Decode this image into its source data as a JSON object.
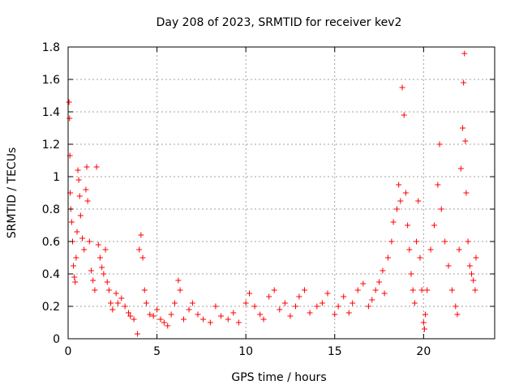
{
  "chart_data": {
    "type": "scatter",
    "title": "Day 208 of 2023, SRMTID for receiver kev2",
    "xlabel": "GPS time / hours",
    "ylabel": "SRMTID / TECUs",
    "xlim": [
      0,
      24
    ],
    "ylim": [
      0,
      1.8
    ],
    "xticks": [
      0,
      5,
      10,
      15,
      20
    ],
    "xtick_labels": [
      "0",
      "5",
      "10",
      "15",
      "20"
    ],
    "yticks": [
      0,
      0.2,
      0.4,
      0.6,
      0.8,
      1.0,
      1.2,
      1.4,
      1.6,
      1.8
    ],
    "ytick_labels": [
      "0",
      "0.2",
      "0.4",
      "0.6",
      "0.8",
      "1",
      "1.2",
      "1.4",
      "1.6",
      "1.8"
    ],
    "grid": true,
    "marker": "plus",
    "color": "#ff0000",
    "series": [
      {
        "name": "kev2",
        "points": [
          [
            0.05,
            1.46
          ],
          [
            0.08,
            1.36
          ],
          [
            0.1,
            1.13
          ],
          [
            0.12,
            0.9
          ],
          [
            0.15,
            0.8
          ],
          [
            0.2,
            0.72
          ],
          [
            0.25,
            0.6
          ],
          [
            0.3,
            0.45
          ],
          [
            0.35,
            0.38
          ],
          [
            0.4,
            0.35
          ],
          [
            0.45,
            0.5
          ],
          [
            0.5,
            0.66
          ],
          [
            0.55,
            1.04
          ],
          [
            0.6,
            0.98
          ],
          [
            0.65,
            0.88
          ],
          [
            0.7,
            0.76
          ],
          [
            0.8,
            0.62
          ],
          [
            0.9,
            0.55
          ],
          [
            1.0,
            0.92
          ],
          [
            1.05,
            1.06
          ],
          [
            1.1,
            0.85
          ],
          [
            1.2,
            0.6
          ],
          [
            1.3,
            0.42
          ],
          [
            1.4,
            0.36
          ],
          [
            1.5,
            0.3
          ],
          [
            1.6,
            1.06
          ],
          [
            1.7,
            0.58
          ],
          [
            1.8,
            0.5
          ],
          [
            1.9,
            0.44
          ],
          [
            2.0,
            0.4
          ],
          [
            2.1,
            0.55
          ],
          [
            2.2,
            0.35
          ],
          [
            2.3,
            0.3
          ],
          [
            2.4,
            0.22
          ],
          [
            2.5,
            0.18
          ],
          [
            2.7,
            0.28
          ],
          [
            2.8,
            0.22
          ],
          [
            3.0,
            0.25
          ],
          [
            3.2,
            0.2
          ],
          [
            3.4,
            0.16
          ],
          [
            3.5,
            0.14
          ],
          [
            3.7,
            0.12
          ],
          [
            3.9,
            0.03
          ],
          [
            4.0,
            0.55
          ],
          [
            4.1,
            0.64
          ],
          [
            4.2,
            0.5
          ],
          [
            4.3,
            0.3
          ],
          [
            4.4,
            0.22
          ],
          [
            4.6,
            0.15
          ],
          [
            4.8,
            0.14
          ],
          [
            5.0,
            0.18
          ],
          [
            5.2,
            0.12
          ],
          [
            5.4,
            0.1
          ],
          [
            5.6,
            0.08
          ],
          [
            5.8,
            0.15
          ],
          [
            6.0,
            0.22
          ],
          [
            6.2,
            0.36
          ],
          [
            6.3,
            0.3
          ],
          [
            6.5,
            0.12
          ],
          [
            6.8,
            0.18
          ],
          [
            7.0,
            0.22
          ],
          [
            7.3,
            0.15
          ],
          [
            7.6,
            0.12
          ],
          [
            8.0,
            0.1
          ],
          [
            8.3,
            0.2
          ],
          [
            8.6,
            0.14
          ],
          [
            9.0,
            0.12
          ],
          [
            9.3,
            0.16
          ],
          [
            9.6,
            0.1
          ],
          [
            10.0,
            0.22
          ],
          [
            10.2,
            0.28
          ],
          [
            10.5,
            0.2
          ],
          [
            10.8,
            0.15
          ],
          [
            11.0,
            0.12
          ],
          [
            11.3,
            0.26
          ],
          [
            11.6,
            0.3
          ],
          [
            11.9,
            0.18
          ],
          [
            12.2,
            0.22
          ],
          [
            12.5,
            0.14
          ],
          [
            12.8,
            0.2
          ],
          [
            13.0,
            0.26
          ],
          [
            13.3,
            0.3
          ],
          [
            13.6,
            0.16
          ],
          [
            14.0,
            0.2
          ],
          [
            14.3,
            0.22
          ],
          [
            14.6,
            0.28
          ],
          [
            15.0,
            0.15
          ],
          [
            15.2,
            0.2
          ],
          [
            15.5,
            0.26
          ],
          [
            15.8,
            0.16
          ],
          [
            16.0,
            0.22
          ],
          [
            16.3,
            0.3
          ],
          [
            16.6,
            0.34
          ],
          [
            16.9,
            0.2
          ],
          [
            17.1,
            0.24
          ],
          [
            17.3,
            0.3
          ],
          [
            17.5,
            0.35
          ],
          [
            17.7,
            0.42
          ],
          [
            17.8,
            0.28
          ],
          [
            18.0,
            0.5
          ],
          [
            18.2,
            0.6
          ],
          [
            18.3,
            0.72
          ],
          [
            18.5,
            0.8
          ],
          [
            18.6,
            0.95
          ],
          [
            18.7,
            0.85
          ],
          [
            18.8,
            1.55
          ],
          [
            18.9,
            1.38
          ],
          [
            19.0,
            0.9
          ],
          [
            19.1,
            0.7
          ],
          [
            19.2,
            0.55
          ],
          [
            19.3,
            0.4
          ],
          [
            19.4,
            0.3
          ],
          [
            19.5,
            0.22
          ],
          [
            19.6,
            0.6
          ],
          [
            19.7,
            0.85
          ],
          [
            19.8,
            0.5
          ],
          [
            19.9,
            0.3
          ],
          [
            20.0,
            0.1
          ],
          [
            20.05,
            0.06
          ],
          [
            20.1,
            0.15
          ],
          [
            20.2,
            0.3
          ],
          [
            20.4,
            0.55
          ],
          [
            20.6,
            0.7
          ],
          [
            20.8,
            0.95
          ],
          [
            20.9,
            1.2
          ],
          [
            21.0,
            0.8
          ],
          [
            21.2,
            0.6
          ],
          [
            21.4,
            0.45
          ],
          [
            21.6,
            0.3
          ],
          [
            21.8,
            0.2
          ],
          [
            21.9,
            0.15
          ],
          [
            22.0,
            0.55
          ],
          [
            22.1,
            1.05
          ],
          [
            22.2,
            1.3
          ],
          [
            22.25,
            1.58
          ],
          [
            22.3,
            1.76
          ],
          [
            22.35,
            1.22
          ],
          [
            22.4,
            0.9
          ],
          [
            22.5,
            0.6
          ],
          [
            22.6,
            0.45
          ],
          [
            22.7,
            0.4
          ],
          [
            22.8,
            0.36
          ],
          [
            22.9,
            0.3
          ],
          [
            22.95,
            0.5
          ]
        ]
      }
    ]
  }
}
